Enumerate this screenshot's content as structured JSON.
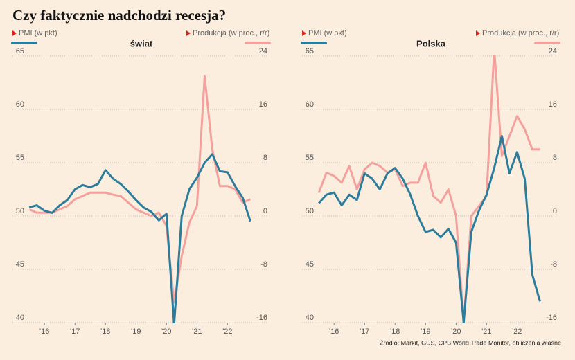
{
  "title": "Czy faktycznie nadchodzi recesja?",
  "source": "Źródło: Markit, GUS, CPB World Trade Monitor, obliczenia własne",
  "chart_data": [
    {
      "type": "line",
      "title": "świat",
      "x": [
        2015.5,
        2015.75,
        2016,
        2016.25,
        2016.5,
        2016.75,
        2017,
        2017.25,
        2017.5,
        2017.75,
        2018,
        2018.25,
        2018.5,
        2018.75,
        2019,
        2019.25,
        2019.5,
        2019.75,
        2020,
        2020.25,
        2020.5,
        2020.75,
        2021,
        2021.25,
        2021.5,
        2021.75,
        2022,
        2022.25,
        2022.5,
        2022.75
      ],
      "xlim": [
        2015.45,
        2022.9
      ],
      "xticks": [
        {
          "value": 2016,
          "label": "'16"
        },
        {
          "value": 2017,
          "label": "'17"
        },
        {
          "value": 2018,
          "label": "'18"
        },
        {
          "value": 2019,
          "label": "'19"
        },
        {
          "value": 2020,
          "label": "'20"
        },
        {
          "value": 2021,
          "label": "'21"
        },
        {
          "value": 2022,
          "label": "'22"
        }
      ],
      "ylim": [
        40,
        65
      ],
      "yticks": [
        40,
        45,
        50,
        55,
        60,
        65
      ],
      "y2lim": [
        -16,
        24
      ],
      "y2ticks": [
        -16,
        -8,
        0,
        8,
        16,
        24
      ],
      "grid": true,
      "series": [
        {
          "name": "PMI (w pkt)",
          "color": "#2c7c9c",
          "axis": "y",
          "values": [
            50.8,
            51.0,
            50.5,
            50.3,
            51.0,
            51.5,
            52.5,
            52.9,
            52.7,
            53.0,
            54.3,
            53.5,
            53.0,
            52.3,
            51.5,
            50.8,
            50.4,
            49.6,
            50.2,
            39.8,
            50.0,
            52.5,
            53.6,
            55.0,
            55.8,
            54.2,
            54.1,
            52.8,
            51.7,
            49.5
          ]
        },
        {
          "name": "Produkcja (w proc., r/r)",
          "color": "#f4a19d",
          "axis": "y2",
          "values": [
            1.0,
            0.5,
            0.5,
            0.5,
            1.0,
            1.5,
            2.5,
            3.0,
            3.5,
            3.5,
            3.5,
            3.2,
            3.0,
            2.0,
            1.0,
            0.5,
            0.0,
            0.5,
            -1.5,
            -13,
            -6,
            -1,
            1.5,
            21,
            10,
            4.5,
            4.5,
            4.0,
            2.0,
            2.5
          ]
        }
      ]
    },
    {
      "type": "line",
      "title": "Polska",
      "x": [
        2015.5,
        2015.75,
        2016,
        2016.25,
        2016.5,
        2016.75,
        2017,
        2017.25,
        2017.5,
        2017.75,
        2018,
        2018.25,
        2018.5,
        2018.75,
        2019,
        2019.25,
        2019.5,
        2019.75,
        2020,
        2020.25,
        2020.5,
        2020.75,
        2021,
        2021.25,
        2021.5,
        2021.75,
        2022,
        2022.25,
        2022.5,
        2022.75
      ],
      "xlim": [
        2015.45,
        2022.9
      ],
      "xticks": [
        {
          "value": 2016,
          "label": "'16"
        },
        {
          "value": 2017,
          "label": "'17"
        },
        {
          "value": 2018,
          "label": "'18"
        },
        {
          "value": 2019,
          "label": "'19"
        },
        {
          "value": 2020,
          "label": "'20"
        },
        {
          "value": 2021,
          "label": "'21"
        },
        {
          "value": 2022,
          "label": "'22"
        }
      ],
      "ylim": [
        40,
        65
      ],
      "yticks": [
        40,
        45,
        50,
        55,
        60,
        65
      ],
      "y2lim": [
        -16,
        24
      ],
      "y2ticks": [
        -16,
        -8,
        0,
        8,
        16,
        24
      ],
      "grid": true,
      "series": [
        {
          "name": "PMI (w pkt)",
          "color": "#2c7c9c",
          "axis": "y",
          "values": [
            51.2,
            52.0,
            52.2,
            51.0,
            52.0,
            51.5,
            54.0,
            53.5,
            52.5,
            54.0,
            54.5,
            53.5,
            52.0,
            50.0,
            48.5,
            48.7,
            48.0,
            48.8,
            47.5,
            40.0,
            48.5,
            50.5,
            52.0,
            54.5,
            57.5,
            54.0,
            56.0,
            53.5,
            44.5,
            42.0
          ]
        },
        {
          "name": "Produkcja (w proc., r/r)",
          "color": "#f4a19d",
          "axis": "y2",
          "values": [
            3.5,
            6.5,
            6.0,
            5.0,
            7.5,
            4.0,
            7.0,
            8.0,
            7.5,
            6.5,
            7.0,
            4.5,
            5.0,
            5.0,
            8.0,
            3.0,
            2.0,
            4.0,
            0.0,
            -16,
            0.0,
            1.5,
            3.0,
            25,
            9,
            12,
            15,
            13,
            10,
            10
          ]
        }
      ]
    }
  ]
}
